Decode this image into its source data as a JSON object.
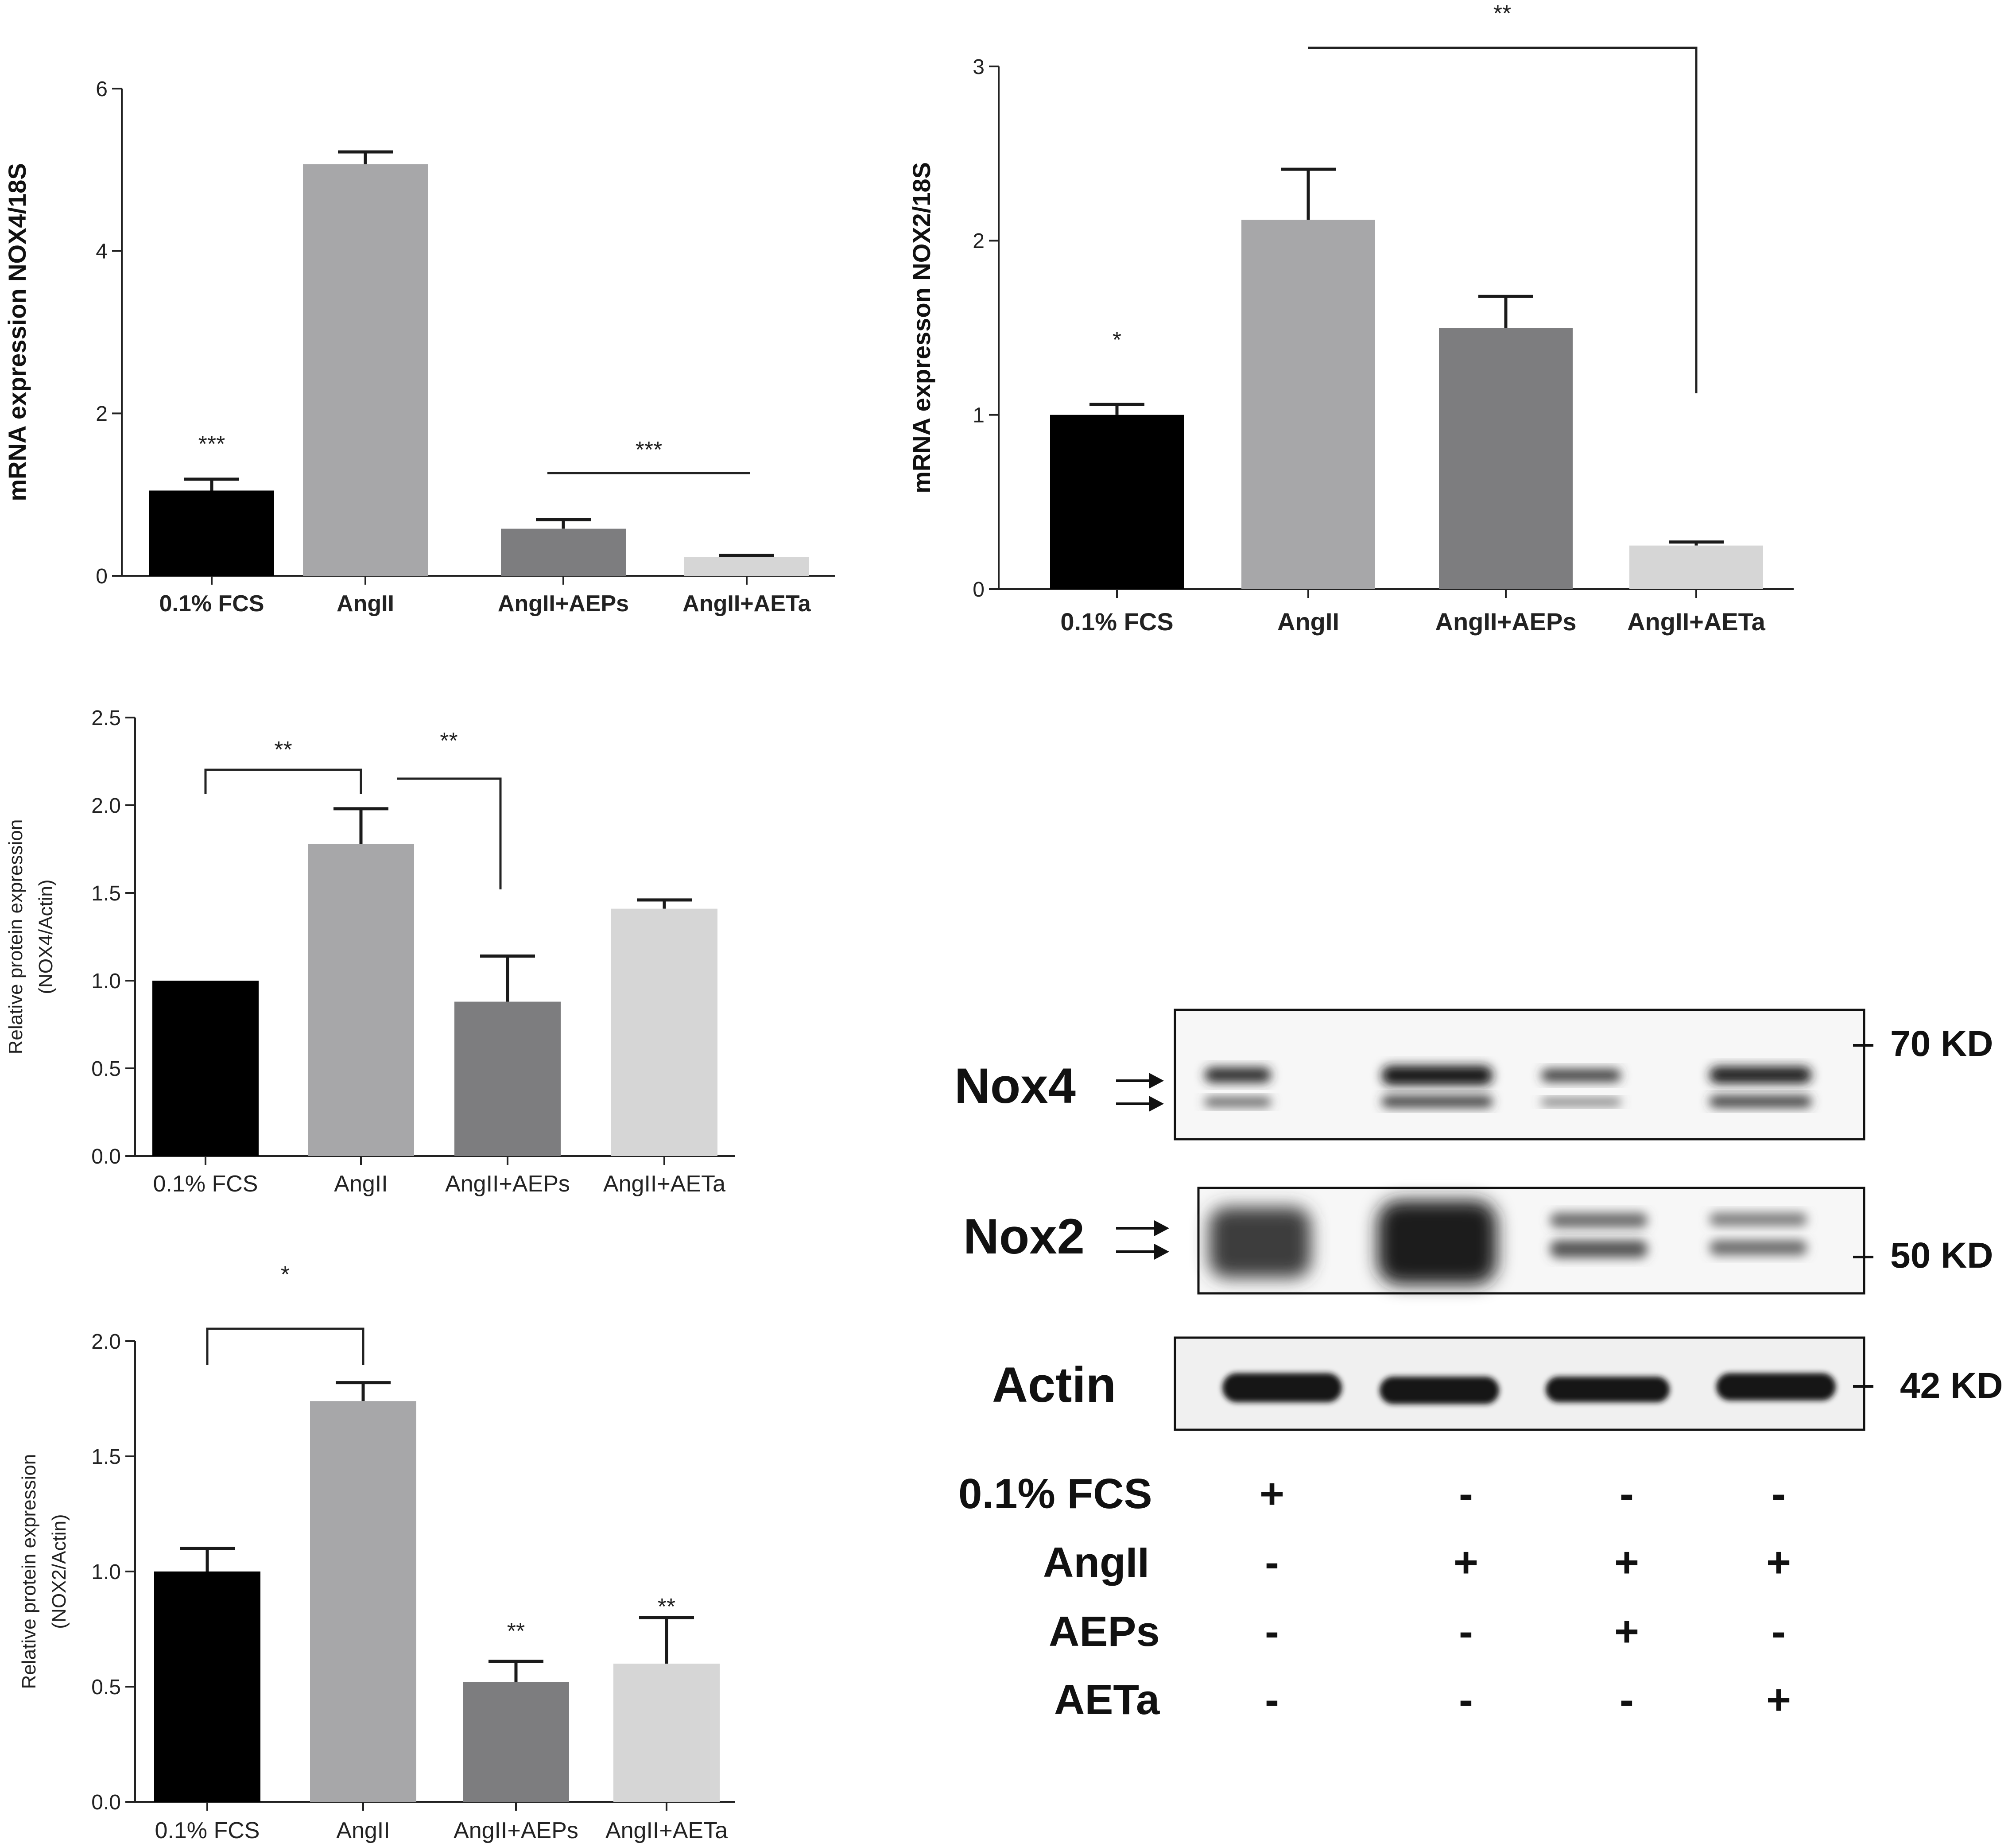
{
  "chart_data": [
    {
      "id": "p1",
      "type": "bar",
      "ylabel": "mRNA expression NOX4/18S",
      "categories": [
        "0.1% FCS",
        "AngII",
        "AngII+AEPs",
        "AngII+AETa"
      ],
      "values": [
        1.05,
        5.07,
        0.58,
        0.23
      ],
      "errors": [
        0.14,
        0.15,
        0.11,
        0.02
      ],
      "colors": [
        "#000000",
        "#a7a7a9",
        "#7d7d7f",
        "#d6d6d6"
      ],
      "ylim": [
        0,
        6
      ],
      "yticks": [
        "0",
        "2",
        "4",
        "6"
      ],
      "annotations": [
        {
          "text": "***",
          "kind": "star",
          "category": 0
        },
        {
          "text": "***",
          "kind": "line",
          "from": 2,
          "to": 3
        }
      ]
    },
    {
      "id": "p2",
      "type": "bar",
      "ylabel": "mRNA expresson  NOX2/18S",
      "categories": [
        "0.1% FCS",
        "AngII",
        "AngII+AEPs",
        "AngII+AETa"
      ],
      "values": [
        1.0,
        2.12,
        1.5,
        0.25
      ],
      "errors": [
        0.06,
        0.29,
        0.18,
        0.02
      ],
      "colors": [
        "#000000",
        "#a7a7a9",
        "#7d7d7f",
        "#d6d6d6"
      ],
      "ylim": [
        0,
        3
      ],
      "yticks": [
        "0",
        "1",
        "2",
        "3"
      ],
      "annotations": [
        {
          "text": "*",
          "kind": "star",
          "category": 0
        },
        {
          "text": "**",
          "kind": "bracket",
          "from": 1,
          "to": 3
        }
      ]
    },
    {
      "id": "p3",
      "type": "bar",
      "ylabel": [
        "Relative protein expression",
        "(NOX4/Actin)"
      ],
      "categories": [
        "0.1% FCS",
        "AngII",
        "AngII+AEPs",
        "AngII+AETa"
      ],
      "values": [
        1.0,
        1.78,
        0.88,
        1.41
      ],
      "errors": [
        0.0,
        0.2,
        0.26,
        0.05
      ],
      "colors": [
        "#000000",
        "#a7a7a9",
        "#7d7d7f",
        "#d6d6d6"
      ],
      "ylim": [
        0,
        2.5
      ],
      "yticks": [
        "0.0",
        "0.5",
        "1.0",
        "1.5",
        "2.0",
        "2.5"
      ],
      "annotations": [
        {
          "text": "**",
          "kind": "bracket",
          "from": 0,
          "to": 1
        },
        {
          "text": "**",
          "kind": "bracket",
          "from": 1,
          "to": 2
        }
      ]
    },
    {
      "id": "p4",
      "type": "bar",
      "ylabel": [
        "Relative protein expression",
        "(NOX2/Actin)"
      ],
      "categories": [
        "0.1% FCS",
        "AngII",
        "AngII+AEPs",
        "AngII+AETa"
      ],
      "values": [
        1.0,
        1.74,
        0.52,
        0.6
      ],
      "errors": [
        0.1,
        0.08,
        0.09,
        0.2
      ],
      "colors": [
        "#000000",
        "#a7a7a9",
        "#7d7d7f",
        "#d6d6d6"
      ],
      "ylim": [
        0,
        2.0
      ],
      "yticks": [
        "0.0",
        "0.5",
        "1.0",
        "1.5",
        "2.0"
      ],
      "annotations": [
        {
          "text": "*",
          "kind": "bracket",
          "from": 0,
          "to": 1
        },
        {
          "text": "**",
          "kind": "star",
          "category": 2
        },
        {
          "text": "**",
          "kind": "star",
          "category": 3
        }
      ]
    }
  ],
  "blot": {
    "bands": [
      {
        "label": "Nox4",
        "marker": "70 KD"
      },
      {
        "label": "Nox2",
        "marker": "50 KD"
      },
      {
        "label": "Actin",
        "marker": "42 KD"
      }
    ],
    "treatments": [
      {
        "label": "0.1% FCS",
        "signs": [
          "+",
          "-",
          "-",
          "-"
        ]
      },
      {
        "label": "AngII",
        "signs": [
          "-",
          "+",
          "+",
          "+"
        ]
      },
      {
        "label": "AEPs",
        "signs": [
          "-",
          "-",
          "+",
          "-"
        ]
      },
      {
        "label": "AETa",
        "signs": [
          "-",
          "-",
          "-",
          "+"
        ]
      }
    ]
  }
}
